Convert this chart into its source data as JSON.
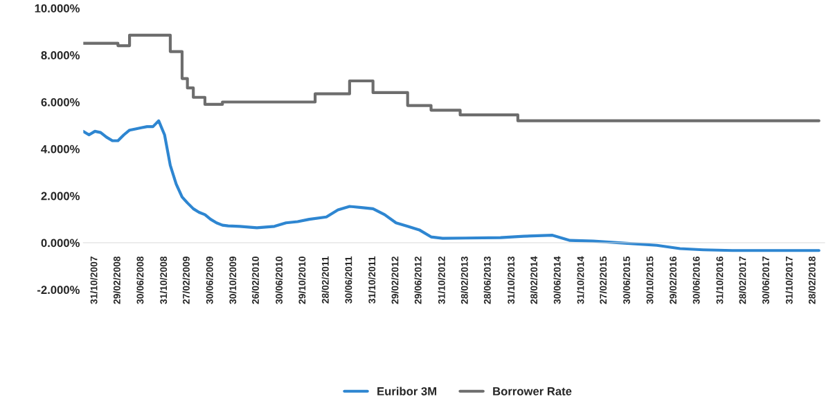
{
  "chart_data": {
    "type": "line",
    "x": [
      "2007-09",
      "2007-10",
      "2007-11",
      "2007-12",
      "2008-01",
      "2008-02",
      "2008-03",
      "2008-04",
      "2008-05",
      "2008-06",
      "2008-07",
      "2008-08",
      "2008-09",
      "2008-10",
      "2008-11",
      "2008-12",
      "2009-01",
      "2009-02",
      "2009-03",
      "2009-04",
      "2009-05",
      "2009-06",
      "2009-07",
      "2009-08",
      "2009-09",
      "2009-10",
      "2009-12",
      "2010-03",
      "2010-06",
      "2010-08",
      "2010-10",
      "2010-12",
      "2011-03",
      "2011-05",
      "2011-07",
      "2011-09",
      "2011-11",
      "2012-01",
      "2012-03",
      "2012-05",
      "2012-07",
      "2012-09",
      "2012-11",
      "2013-03",
      "2013-09",
      "2014-01",
      "2014-06",
      "2014-09",
      "2015-01",
      "2015-06",
      "2015-12",
      "2016-04",
      "2016-08",
      "2017-01",
      "2017-06",
      "2018-04"
    ],
    "series": [
      {
        "name": "Euribor 3M",
        "color": "#2e86d1",
        "values": [
          4.75,
          4.6,
          4.75,
          4.7,
          4.5,
          4.35,
          4.35,
          4.6,
          4.8,
          4.85,
          4.9,
          4.95,
          4.95,
          5.2,
          4.6,
          3.3,
          2.5,
          1.95,
          1.7,
          1.45,
          1.3,
          1.2,
          1.0,
          0.85,
          0.75,
          0.72,
          0.7,
          0.64,
          0.7,
          0.85,
          0.9,
          1.0,
          1.1,
          1.4,
          1.55,
          1.5,
          1.45,
          1.2,
          0.85,
          0.7,
          0.55,
          0.25,
          0.19,
          0.2,
          0.22,
          0.28,
          0.32,
          0.1,
          0.07,
          -0.01,
          -0.11,
          -0.25,
          -0.3,
          -0.33,
          -0.33,
          -0.33
        ]
      },
      {
        "name": "Borrower Rate",
        "color": "#6d6d6d",
        "type": "step",
        "x": [
          "2007-09",
          "2008-03",
          "2008-05",
          "2008-12",
          "2009-02",
          "2009-03",
          "2009-04",
          "2009-06",
          "2009-09",
          "2011-01",
          "2011-07",
          "2011-11",
          "2012-05",
          "2012-09",
          "2013-02",
          "2013-12",
          "2018-04"
        ],
        "values": [
          8.5,
          8.4,
          8.85,
          8.15,
          7.0,
          6.6,
          6.2,
          5.9,
          6.0,
          6.35,
          6.9,
          6.4,
          5.85,
          5.65,
          5.45,
          5.2,
          5.2
        ]
      }
    ],
    "xlim": [
      "2007-09",
      "2018-05"
    ],
    "xticks": [
      {
        "value": "2007-10-31",
        "label": "31/10/2007"
      },
      {
        "value": "2008-02-29",
        "label": "29/02/2008"
      },
      {
        "value": "2008-06-30",
        "label": "30/06/2008"
      },
      {
        "value": "2008-10-31",
        "label": "31/10/2008"
      },
      {
        "value": "2009-02-27",
        "label": "27/02/2009"
      },
      {
        "value": "2009-06-30",
        "label": "30/06/2009"
      },
      {
        "value": "2009-10-30",
        "label": "30/10/2009"
      },
      {
        "value": "2010-02-26",
        "label": "26/02/2010"
      },
      {
        "value": "2010-06-30",
        "label": "30/06/2010"
      },
      {
        "value": "2010-10-29",
        "label": "29/10/2010"
      },
      {
        "value": "2011-02-28",
        "label": "28/02/2011"
      },
      {
        "value": "2011-06-30",
        "label": "30/06/2011"
      },
      {
        "value": "2011-10-31",
        "label": "31/10/2011"
      },
      {
        "value": "2012-02-29",
        "label": "29/02/2012"
      },
      {
        "value": "2012-06-29",
        "label": "29/06/2012"
      },
      {
        "value": "2012-10-31",
        "label": "31/10/2012"
      },
      {
        "value": "2013-02-28",
        "label": "28/02/2013"
      },
      {
        "value": "2013-06-28",
        "label": "28/06/2013"
      },
      {
        "value": "2013-10-31",
        "label": "31/10/2013"
      },
      {
        "value": "2014-02-28",
        "label": "28/02/2014"
      },
      {
        "value": "2014-06-30",
        "label": "30/06/2014"
      },
      {
        "value": "2014-10-31",
        "label": "31/10/2014"
      },
      {
        "value": "2015-02-27",
        "label": "27/02/2015"
      },
      {
        "value": "2015-06-30",
        "label": "30/06/2015"
      },
      {
        "value": "2015-10-30",
        "label": "30/10/2015"
      },
      {
        "value": "2016-02-29",
        "label": "29/02/2016"
      },
      {
        "value": "2016-06-30",
        "label": "30/06/2016"
      },
      {
        "value": "2016-10-31",
        "label": "31/10/2016"
      },
      {
        "value": "2017-02-28",
        "label": "28/02/2017"
      },
      {
        "value": "2017-06-30",
        "label": "30/06/2017"
      },
      {
        "value": "2017-10-31",
        "label": "31/10/2017"
      },
      {
        "value": "2018-02-28",
        "label": "28/02/2018"
      }
    ],
    "ylim": [
      -2,
      10
    ],
    "yticks": [
      {
        "value": -2,
        "label": "-2.000%"
      },
      {
        "value": 0,
        "label": "0.000%"
      },
      {
        "value": 2,
        "label": "2.000%"
      },
      {
        "value": 4,
        "label": "4.000%"
      },
      {
        "value": 6,
        "label": "6.000%"
      },
      {
        "value": 8,
        "label": "8.000%"
      },
      {
        "value": 10,
        "label": "10.000%"
      }
    ],
    "legend": "bottom",
    "grid": false
  }
}
